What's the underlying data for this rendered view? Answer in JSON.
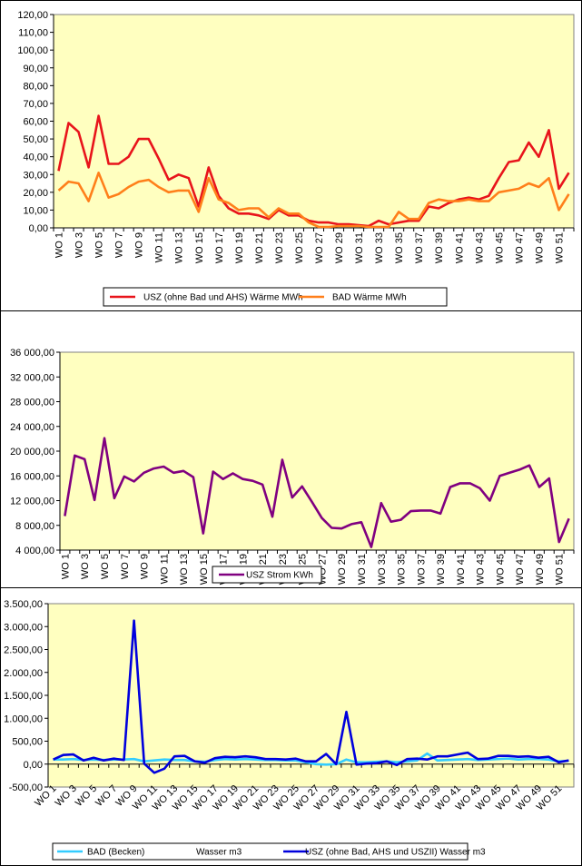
{
  "colors": {
    "plot_bg": "#FFFFC0",
    "usz_waerme": "#E8141B",
    "bad_waerme": "#FF7F1A",
    "usz_strom": "#800080",
    "bad_becken": "#33CCFF",
    "usz_wasser": "#0000DD"
  },
  "chart_data": [
    {
      "type": "line",
      "categories": [
        "WO 1",
        "WO 2",
        "WO 3",
        "WO 4",
        "WO 5",
        "WO 6",
        "WO 7",
        "WO 8",
        "WO 9",
        "WO 10",
        "WO 11",
        "WO 12",
        "WO 13",
        "WO 14",
        "WO 15",
        "WO 16",
        "WO 17",
        "WO 18",
        "WO 19",
        "WO 20",
        "WO 21",
        "WO 22",
        "WO 23",
        "WO 24",
        "WO 25",
        "WO 26",
        "WO 27",
        "WO 28",
        "WO 29",
        "WO 30",
        "WO 31",
        "WO 32",
        "WO 33",
        "WO 34",
        "WO 35",
        "WO 36",
        "WO 37",
        "WO 38",
        "WO 39",
        "WO 40",
        "WO 41",
        "WO 42",
        "WO 43",
        "WO 44",
        "WO 45",
        "WO 46",
        "WO 47",
        "WO 48",
        "WO 49",
        "WO 50",
        "WO 51",
        "WO 52"
      ],
      "x_tick_labels": [
        "WO 1",
        "WO 3",
        "WO 5",
        "WO 7",
        "WO 9",
        "WO 11",
        "WO 13",
        "WO 15",
        "WO 17",
        "WO 19",
        "WO 21",
        "WO 23",
        "WO 25",
        "WO 27",
        "WO 29",
        "WO 31",
        "WO 33",
        "WO 35",
        "WO 37",
        "WO 39",
        "WO 41",
        "WO 43",
        "WO 45",
        "WO 47",
        "WO 49",
        "WO 51"
      ],
      "y_tick_labels": [
        "0,00",
        "10,00",
        "20,00",
        "30,00",
        "40,00",
        "50,00",
        "60,00",
        "70,00",
        "80,00",
        "90,00",
        "100,00",
        "110,00",
        "120,00"
      ],
      "ylim": [
        0,
        120
      ],
      "grid": false,
      "legend_position": "bottom",
      "series": [
        {
          "name": "USZ (ohne Bad und AHS) Wärme  MWh",
          "color_key": "usz_waerme",
          "values": [
            32,
            59,
            54,
            34,
            63,
            36,
            36,
            40,
            50,
            50,
            39,
            27,
            30,
            28,
            12,
            34,
            18,
            11,
            8,
            8,
            7,
            5,
            10,
            7,
            7,
            4,
            3,
            3,
            2,
            2,
            1.5,
            1,
            4,
            2,
            3,
            4,
            4,
            12,
            11,
            14,
            16,
            17,
            16,
            18,
            28,
            37,
            38,
            48,
            40,
            55,
            22,
            31
          ]
        },
        {
          "name": "BAD Wärme  MWh",
          "color_key": "bad_waerme",
          "values": [
            21,
            26,
            25,
            15,
            31,
            17,
            19,
            23,
            26,
            27,
            23,
            20,
            21,
            21,
            9,
            28,
            16,
            14,
            10,
            11,
            11,
            6,
            11,
            8,
            8,
            3,
            0.5,
            0.5,
            1,
            1,
            1,
            0.5,
            0.5,
            0.5,
            9,
            5,
            5,
            14,
            16,
            15,
            15,
            16,
            15,
            15,
            20,
            21,
            22,
            25,
            23,
            28,
            10,
            19
          ]
        }
      ]
    },
    {
      "type": "line",
      "categories": [
        "WO 1",
        "WO 2",
        "WO 3",
        "WO 4",
        "WO 5",
        "WO 6",
        "WO 7",
        "WO 8",
        "WO 9",
        "WO 10",
        "WO 11",
        "WO 12",
        "WO 13",
        "WO 14",
        "WO 15",
        "WO 16",
        "WO 17",
        "WO 18",
        "WO 19",
        "WO 20",
        "WO 21",
        "WO 22",
        "WO 23",
        "WO 24",
        "WO 25",
        "WO 26",
        "WO 27",
        "WO 28",
        "WO 29",
        "WO 30",
        "WO 31",
        "WO 32",
        "WO 33",
        "WO 34",
        "WO 35",
        "WO 36",
        "WO 37",
        "WO 38",
        "WO 39",
        "WO 40",
        "WO 41",
        "WO 42",
        "WO 43",
        "WO 44",
        "WO 45",
        "WO 46",
        "WO 47",
        "WO 48",
        "WO 49",
        "WO 50",
        "WO 51",
        "WO 52"
      ],
      "x_tick_labels": [
        "WO 1",
        "WO 3",
        "WO 5",
        "WO 7",
        "WO 9",
        "WO 11",
        "WO 13",
        "WO 15",
        "WO 17",
        "WO 19",
        "WO 21",
        "WO 23",
        "WO 25",
        "WO 27",
        "WO 29",
        "WO 31",
        "WO 33",
        "WO 35",
        "WO 37",
        "WO 39",
        "WO 41",
        "WO 43",
        "WO 45",
        "WO 47",
        "WO 49",
        "WO 51"
      ],
      "y_tick_labels": [
        "4 000,00",
        "8 000,00",
        "12 000,00",
        "16 000,00",
        "20 000,00",
        "24 000,00",
        "28 000,00",
        "32 000,00",
        "36 000,00"
      ],
      "ylim": [
        4000,
        36000
      ],
      "grid": false,
      "legend_position": "bottom",
      "series": [
        {
          "name": "USZ Strom  KWh",
          "color_key": "usz_strom",
          "values": [
            9500,
            19300,
            18700,
            12100,
            22100,
            12400,
            15900,
            15100,
            16500,
            17200,
            17500,
            16500,
            16800,
            15800,
            6700,
            16700,
            15500,
            16400,
            15500,
            15200,
            14600,
            9400,
            18600,
            12500,
            14300,
            11800,
            9200,
            7600,
            7500,
            8200,
            8500,
            4500,
            11600,
            8600,
            8900,
            10300,
            10400,
            10400,
            9900,
            14200,
            14800,
            14800,
            14000,
            12000,
            16000,
            16500,
            17000,
            17700,
            14200,
            15600,
            5300,
            9100
          ]
        }
      ]
    },
    {
      "type": "line",
      "categories": [
        "WO 1",
        "WO 2",
        "WO 3",
        "WO 4",
        "WO 5",
        "WO 6",
        "WO 7",
        "WO 8",
        "WO 9",
        "WO 10",
        "WO 11",
        "WO 12",
        "WO 13",
        "WO 14",
        "WO 15",
        "WO 16",
        "WO 17",
        "WO 18",
        "WO 19",
        "WO 20",
        "WO 21",
        "WO 22",
        "WO 23",
        "WO 24",
        "WO 25",
        "WO 26",
        "WO 27",
        "WO 28",
        "WO 29",
        "WO 30",
        "WO 31",
        "WO 32",
        "WO 33",
        "WO 34",
        "WO 35",
        "WO 36",
        "WO 37",
        "WO 38",
        "WO 39",
        "WO 40",
        "WO 41",
        "WO 42",
        "WO 43",
        "WO 44",
        "WO 45",
        "WO 46",
        "WO 47",
        "WO 48",
        "WO 49",
        "WO 50",
        "WO 51",
        "WO 52"
      ],
      "x_tick_labels": [
        "WO 1",
        "WO 3",
        "WO 5",
        "WO 7",
        "WO 9",
        "WO 11",
        "WO 13",
        "WO 15",
        "WO 17",
        "WO 19",
        "WO 21",
        "WO 23",
        "WO 25",
        "WO 27",
        "WO 29",
        "WO 31",
        "WO 33",
        "WO 35",
        "WO 37",
        "WO 39",
        "WO 41",
        "WO 43",
        "WO 45",
        "WO 47",
        "WO 49",
        "WO 51"
      ],
      "y_tick_labels": [
        "-500,00",
        "0,00",
        "500,00",
        "1.000,00",
        "1.500,00",
        "2.000,00",
        "2.500,00",
        "3.000,00",
        "3.500,00"
      ],
      "ylim": [
        -500,
        3500
      ],
      "grid": false,
      "legend_position": "bottom",
      "series": [
        {
          "name": "BAD (Becken)",
          "legend_extra": "Wasser m3",
          "color_key": "bad_becken",
          "values": [
            100,
            100,
            110,
            90,
            100,
            90,
            100,
            100,
            110,
            60,
            80,
            100,
            90,
            90,
            60,
            50,
            90,
            110,
            100,
            110,
            100,
            90,
            90,
            80,
            80,
            40,
            0,
            -10,
            0,
            100,
            40,
            40,
            50,
            60,
            40,
            60,
            80,
            230,
            80,
            90,
            100,
            110,
            90,
            100,
            110,
            120,
            100,
            110,
            110,
            100,
            60,
            70
          ]
        },
        {
          "name": "USZ (ohne Bad, AHS und USZII) Wasser  m3",
          "color_key": "usz_wasser",
          "values": [
            100,
            200,
            210,
            80,
            140,
            80,
            120,
            90,
            3130,
            10,
            -190,
            -100,
            170,
            180,
            60,
            30,
            130,
            160,
            150,
            170,
            150,
            110,
            110,
            100,
            120,
            60,
            60,
            220,
            0,
            1140,
            -10,
            10,
            20,
            60,
            -20,
            110,
            120,
            100,
            170,
            170,
            210,
            250,
            110,
            120,
            180,
            180,
            160,
            170,
            140,
            160,
            40,
            80
          ]
        }
      ]
    }
  ]
}
